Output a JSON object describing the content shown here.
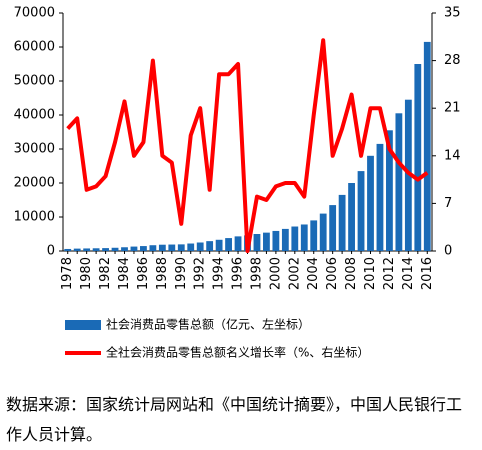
{
  "chart_data": {
    "type": "bar-line",
    "categories": [
      "1978",
      null,
      "1980",
      null,
      "1982",
      null,
      "1984",
      null,
      "1986",
      null,
      "1988",
      null,
      "1990",
      null,
      "1992",
      null,
      "1994",
      null,
      "1996",
      null,
      "1998",
      null,
      "2000",
      null,
      "2002",
      null,
      "2004",
      null,
      "2006",
      null,
      "2008",
      null,
      "2010",
      null,
      "2012",
      null,
      "2014",
      null,
      "2016"
    ],
    "ylim": [
      0,
      70000
    ],
    "yticks": [
      0,
      10000,
      20000,
      30000,
      40000,
      50000,
      60000,
      70000
    ],
    "y2lim": [
      0,
      35
    ],
    "y2ticks": [
      0,
      7,
      14,
      21,
      28,
      35
    ],
    "series": [
      {
        "name": "社会消费品零售总额（亿元、左坐标）",
        "type": "bar",
        "color": "#1a6ab6",
        "values": [
          600,
          700,
          750,
          800,
          850,
          950,
          1100,
          1300,
          1450,
          1700,
          1850,
          1900,
          1950,
          2200,
          2500,
          2900,
          3300,
          3800,
          4300,
          4600,
          5000,
          5400,
          5900,
          6500,
          7200,
          7800,
          9000,
          11000,
          13500,
          16500,
          20000,
          23500,
          28000,
          31500,
          35500,
          40500,
          44500,
          55000,
          61500
        ]
      },
      {
        "name": "全社会消费品零售总额名义增长率（%、右坐标）",
        "type": "line",
        "axis": "y2",
        "color": "#ff0000",
        "values": [
          18,
          19.5,
          9,
          9.5,
          11,
          16,
          22,
          14,
          16,
          28,
          14,
          13,
          4,
          17,
          21,
          9,
          26,
          26,
          27.5,
          0,
          8,
          7.5,
          9.5,
          10,
          10,
          8,
          20,
          31,
          14,
          18,
          23,
          14,
          21,
          21,
          15,
          13,
          11.5,
          10.5,
          11.5
        ]
      }
    ],
    "source": "数据来源：国家统计局网站和《中国统计摘要》，中国人民银行工作人员计算。"
  }
}
